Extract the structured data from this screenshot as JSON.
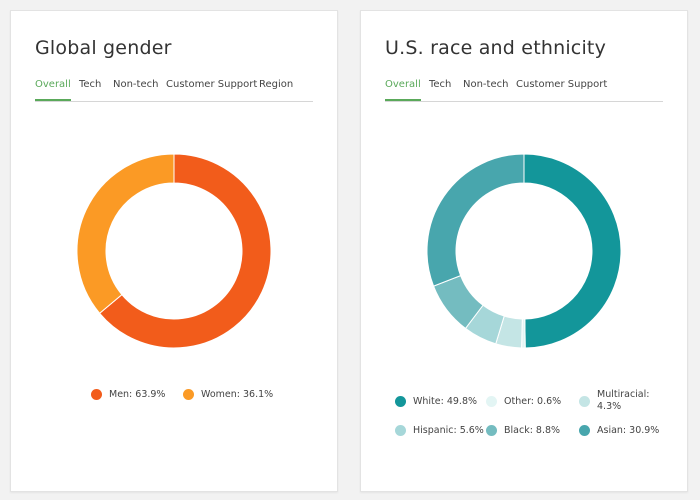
{
  "gender_card": {
    "title": "Global gender",
    "tabs": [
      "Overall",
      "Tech",
      "Non-tech",
      "Customer Support",
      "Region"
    ],
    "active_tab": 0
  },
  "race_card": {
    "title": "U.S. race and ethnicity",
    "tabs": [
      "Overall",
      "Tech",
      "Non-tech",
      "Customer Support"
    ],
    "active_tab": 0
  },
  "colors": {
    "men": "#f25c1b",
    "women": "#fb9a25",
    "white": "#13969a",
    "other": "#e3f5f4",
    "multiracial": "#c4e5e5",
    "hispanic": "#a6d7d9",
    "black": "#74bcc0",
    "asian": "#48a6ad",
    "active_tab": "#5aa95a"
  },
  "chart_data": [
    {
      "type": "pie",
      "title": "Global gender",
      "slices": [
        {
          "key": "men",
          "label": "Men: 63.9%",
          "name": "Men",
          "value": 63.9
        },
        {
          "key": "women",
          "label": "Women: 36.1%",
          "name": "Women",
          "value": 36.1
        }
      ]
    },
    {
      "type": "pie",
      "title": "U.S. race and ethnicity",
      "slices": [
        {
          "key": "white",
          "label": "White: 49.8%",
          "name": "White",
          "value": 49.8
        },
        {
          "key": "other",
          "label": "Other: 0.6%",
          "name": "Other",
          "value": 0.6
        },
        {
          "key": "multiracial",
          "label": "Multiracial: 4.3%",
          "name": "Multiracial",
          "value": 4.3
        },
        {
          "key": "hispanic",
          "label": "Hispanic: 5.6%",
          "name": "Hispanic",
          "value": 5.6
        },
        {
          "key": "black",
          "label": "Black: 8.8%",
          "name": "Black",
          "value": 8.8
        },
        {
          "key": "asian",
          "label": "Asian: 30.9%",
          "name": "Asian",
          "value": 30.9
        }
      ]
    }
  ]
}
